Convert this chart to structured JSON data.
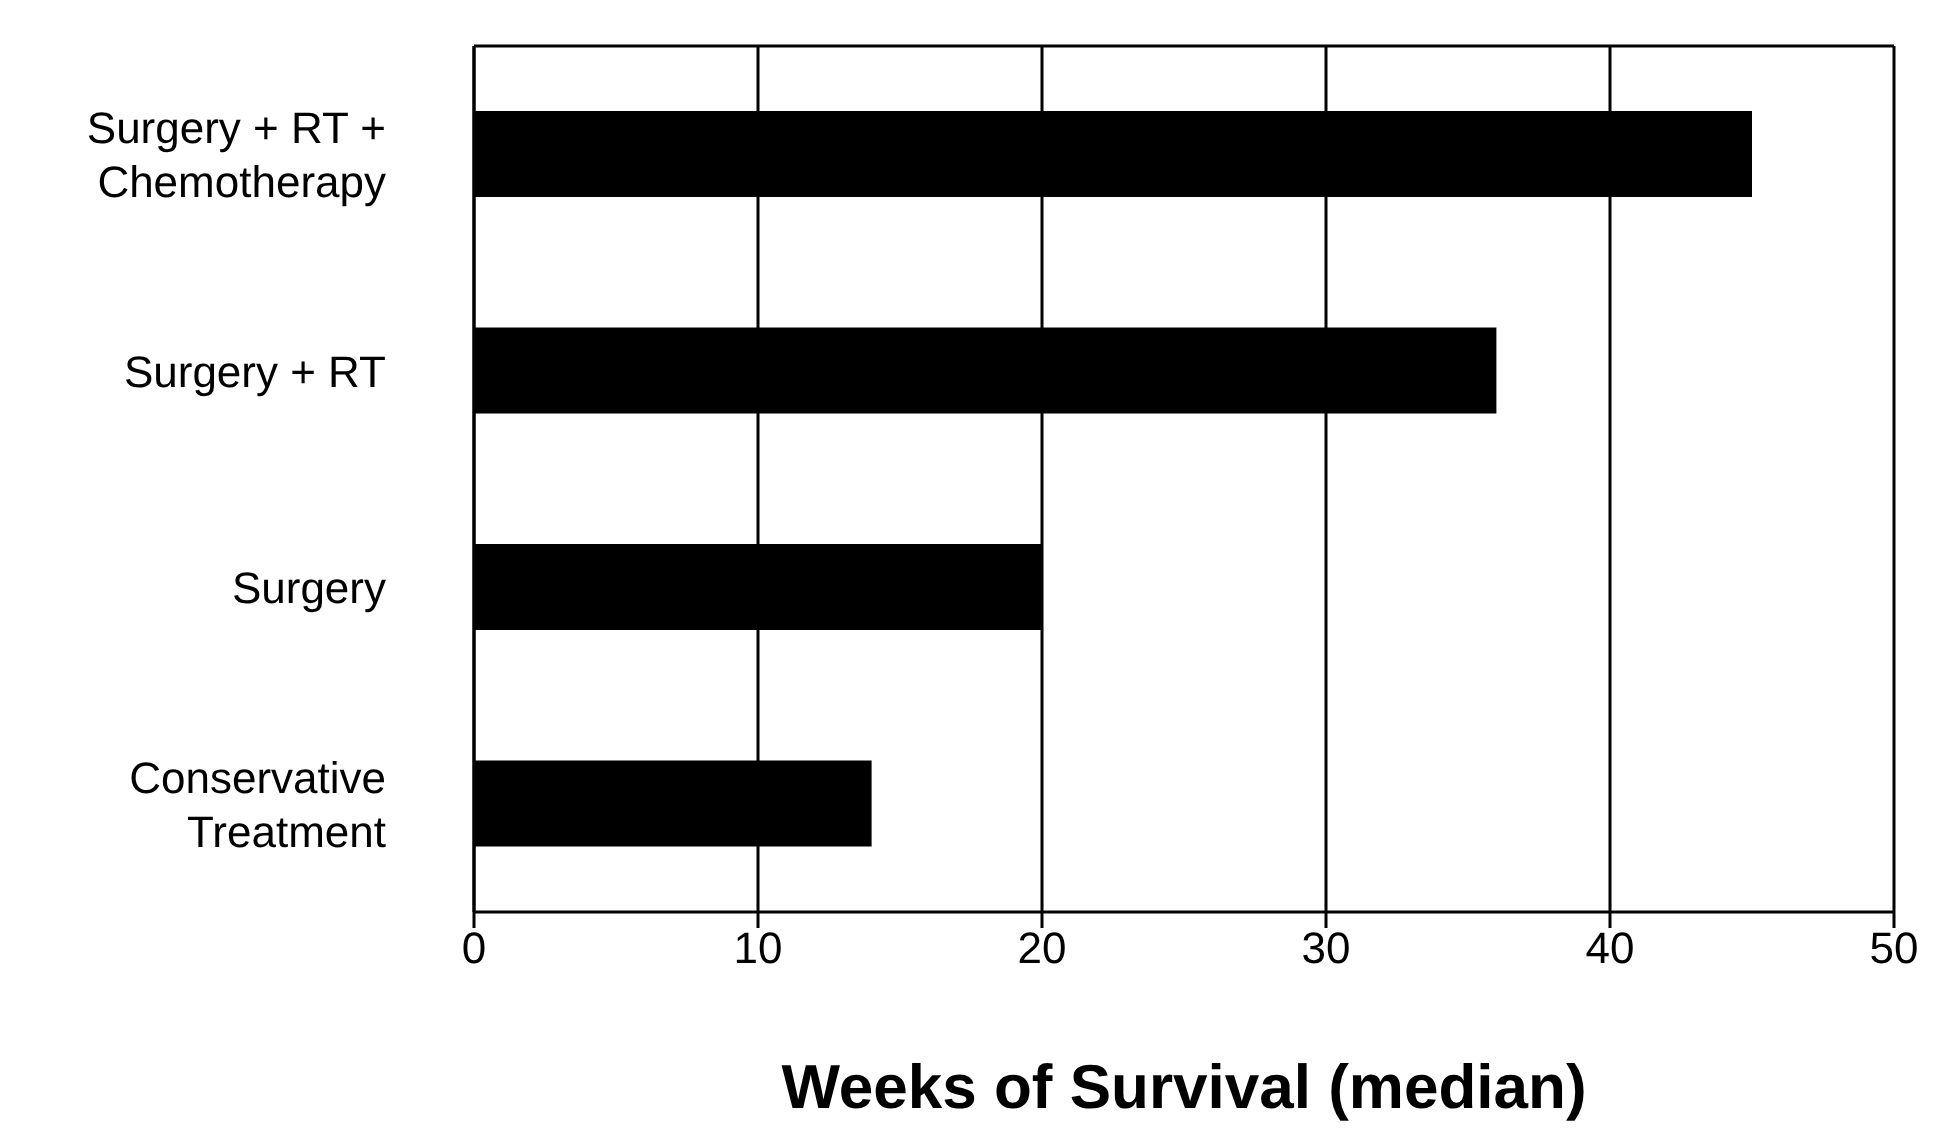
{
  "chart_data": {
    "type": "bar",
    "orientation": "horizontal",
    "xlabel": "Weeks of Survival (median)",
    "categories": [
      "Surgery + RT + Chemotherapy",
      "Surgery + RT",
      "Surgery",
      "Conservative Treatment"
    ],
    "values": [
      45,
      36,
      20,
      14
    ],
    "color": "#000000",
    "xlim": [
      0,
      50
    ],
    "xticks": [
      0,
      10,
      20,
      30,
      40,
      50
    ],
    "grid": "x"
  }
}
